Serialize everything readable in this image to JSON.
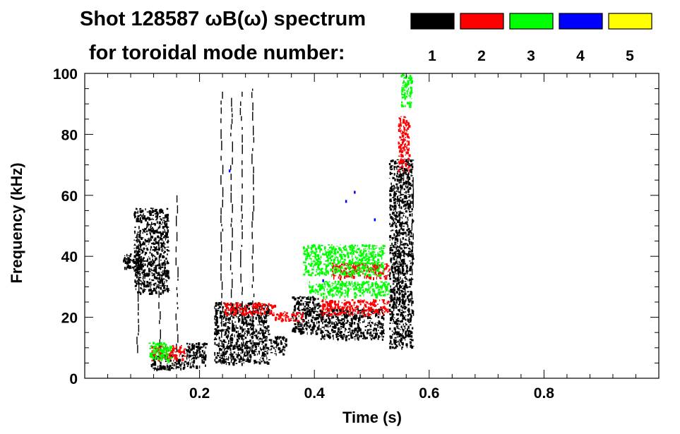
{
  "chart_data": {
    "type": "heatmap",
    "title": "Shot 128587 ωB(ω) spectrum",
    "subtitle": "for toroidal mode number:",
    "xlabel": "Time (s)",
    "ylabel": "Frequency (kHz)",
    "xlim": [
      0.0,
      1.0
    ],
    "ylim": [
      0,
      100
    ],
    "x_ticks": [
      0.2,
      0.4,
      0.6,
      0.8
    ],
    "x_tick_labels": [
      "0.2",
      "0.4",
      "0.6",
      "0.8"
    ],
    "y_ticks": [
      0,
      20,
      40,
      60,
      80,
      100
    ],
    "y_tick_labels": [
      "0",
      "20",
      "40",
      "60",
      "80",
      "100"
    ],
    "grid": false,
    "legend_position": "top-right",
    "legend": [
      {
        "label": "1",
        "color": "#000000"
      },
      {
        "label": "2",
        "color": "#ff0000"
      },
      {
        "label": "3",
        "color": "#00ff00"
      },
      {
        "label": "4",
        "color": "#0000ff"
      },
      {
        "label": "5",
        "color": "#ffff00"
      }
    ],
    "series": [
      {
        "mode": 1,
        "color": "#000000",
        "blobs": [
          {
            "t": [
              0.065,
              0.105
            ],
            "f": [
              36,
              41
            ]
          },
          {
            "t": [
              0.085,
              0.145
            ],
            "f": [
              28,
              56
            ]
          },
          {
            "t": [
              0.115,
              0.175
            ],
            "f": [
              3,
              8
            ]
          },
          {
            "t": [
              0.175,
              0.21
            ],
            "f": [
              4,
              12
            ]
          },
          {
            "t": [
              0.225,
              0.32
            ],
            "f": [
              5,
              25
            ]
          },
          {
            "t": [
              0.32,
              0.35
            ],
            "f": [
              8,
              14
            ]
          },
          {
            "t": [
              0.36,
              0.41
            ],
            "f": [
              15,
              27
            ]
          },
          {
            "t": [
              0.41,
              0.52
            ],
            "f": [
              13,
              23
            ]
          },
          {
            "t": [
              0.53,
              0.57
            ],
            "f": [
              10,
              72
            ]
          }
        ],
        "vertical_streaks": [
          {
            "t": 0.092,
            "f": [
              8,
              50
            ]
          },
          {
            "t": 0.13,
            "f": [
              5,
              45
            ]
          },
          {
            "t": 0.16,
            "f": [
              2,
              60
            ]
          },
          {
            "t": 0.238,
            "f": [
              5,
              94
            ]
          },
          {
            "t": 0.255,
            "f": [
              5,
              92
            ]
          },
          {
            "t": 0.272,
            "f": [
              8,
              94
            ]
          },
          {
            "t": 0.292,
            "f": [
              8,
              95
            ]
          },
          {
            "t": 0.548,
            "f": [
              22,
              68
            ]
          },
          {
            "t": 0.57,
            "f": [
              20,
              66
            ]
          }
        ]
      },
      {
        "mode": 2,
        "color": "#ff0000",
        "blobs": [
          {
            "t": [
              0.115,
              0.175
            ],
            "f": [
              6,
              11
            ]
          },
          {
            "t": [
              0.24,
              0.33
            ],
            "f": [
              21,
              25
            ]
          },
          {
            "t": [
              0.33,
              0.38
            ],
            "f": [
              19,
              22
            ]
          },
          {
            "t": [
              0.41,
              0.53
            ],
            "f": [
              21,
              26
            ]
          },
          {
            "t": [
              0.43,
              0.53
            ],
            "f": [
              33,
              38
            ]
          },
          {
            "t": [
              0.545,
              0.565
            ],
            "f": [
              68,
              86
            ]
          }
        ]
      },
      {
        "mode": 3,
        "color": "#00ff00",
        "blobs": [
          {
            "t": [
              0.11,
              0.15
            ],
            "f": [
              6,
              12
            ]
          },
          {
            "t": [
              0.38,
              0.52
            ],
            "f": [
              34,
              44
            ]
          },
          {
            "t": [
              0.39,
              0.53
            ],
            "f": [
              27,
              32
            ]
          },
          {
            "t": [
              0.55,
              0.57
            ],
            "f": [
              89,
              100
            ]
          }
        ]
      },
      {
        "mode": 4,
        "color": "#0000ff",
        "points": [
          {
            "t": 0.252,
            "f": 68
          },
          {
            "t": 0.415,
            "f": 32
          },
          {
            "t": 0.455,
            "f": 58
          },
          {
            "t": 0.47,
            "f": 61
          },
          {
            "t": 0.505,
            "f": 52
          }
        ]
      }
    ]
  }
}
